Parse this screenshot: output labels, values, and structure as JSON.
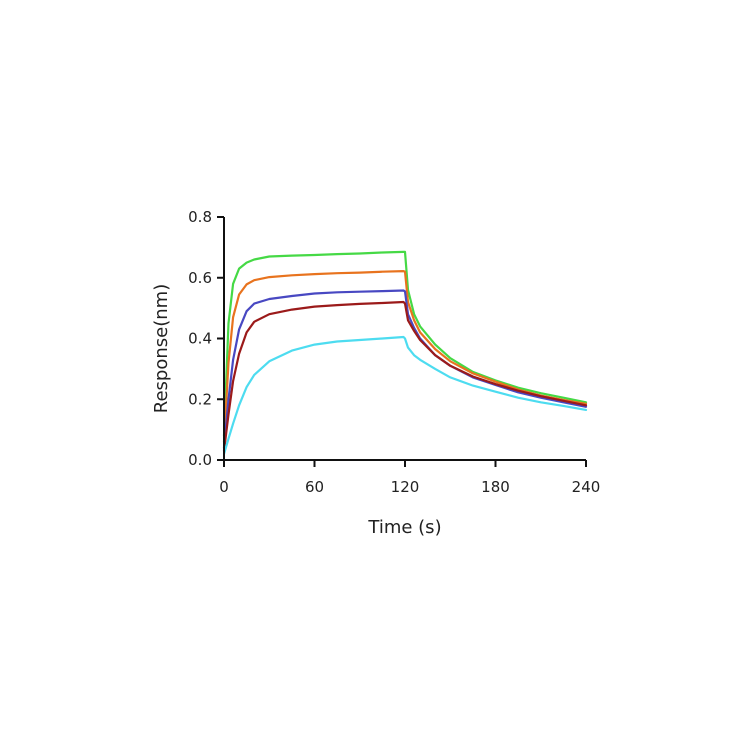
{
  "chart_data": {
    "type": "line",
    "title": "",
    "xlabel": "Time (s)",
    "ylabel": "Response(nm)",
    "xlim": [
      0,
      240
    ],
    "ylim": [
      0,
      0.8
    ],
    "xticks": [
      0,
      60,
      120,
      180,
      240
    ],
    "xtick_labels": [
      "0",
      "60",
      "120",
      "180",
      "240"
    ],
    "yticks": [
      0,
      0.2,
      0.4,
      0.6,
      0.8
    ],
    "ytick_labels": [
      "0.0",
      "0.2",
      "0.4",
      "0.6",
      "0.8"
    ],
    "grid": false,
    "legend": "none",
    "x": [
      0,
      3,
      6,
      10,
      15,
      20,
      30,
      45,
      60,
      75,
      90,
      105,
      119,
      120,
      122,
      126,
      130,
      140,
      150,
      165,
      180,
      195,
      210,
      225,
      240
    ],
    "series": [
      {
        "color": "#45d945",
        "values": [
          0.08,
          0.45,
          0.58,
          0.63,
          0.65,
          0.66,
          0.67,
          0.673,
          0.675,
          0.678,
          0.68,
          0.683,
          0.685,
          0.685,
          0.56,
          0.48,
          0.44,
          0.38,
          0.335,
          0.29,
          0.262,
          0.238,
          0.22,
          0.205,
          0.19
        ]
      },
      {
        "color": "#e8731e",
        "values": [
          0.06,
          0.32,
          0.47,
          0.545,
          0.578,
          0.592,
          0.602,
          0.608,
          0.612,
          0.615,
          0.617,
          0.62,
          0.622,
          0.62,
          0.52,
          0.46,
          0.42,
          0.365,
          0.325,
          0.285,
          0.258,
          0.232,
          0.212,
          0.198,
          0.185
        ]
      },
      {
        "color": "#4848c2",
        "values": [
          0.04,
          0.2,
          0.33,
          0.43,
          0.49,
          0.515,
          0.53,
          0.54,
          0.548,
          0.552,
          0.554,
          0.556,
          0.558,
          0.555,
          0.48,
          0.435,
          0.4,
          0.345,
          0.31,
          0.272,
          0.247,
          0.223,
          0.205,
          0.19,
          0.175
        ]
      },
      {
        "color": "#9b1a1a",
        "values": [
          0.03,
          0.15,
          0.26,
          0.35,
          0.42,
          0.455,
          0.48,
          0.495,
          0.505,
          0.51,
          0.514,
          0.517,
          0.52,
          0.515,
          0.46,
          0.425,
          0.395,
          0.345,
          0.31,
          0.275,
          0.25,
          0.228,
          0.21,
          0.195,
          0.18
        ]
      },
      {
        "color": "#4ddcf0",
        "values": [
          0.02,
          0.07,
          0.12,
          0.18,
          0.24,
          0.28,
          0.325,
          0.36,
          0.38,
          0.39,
          0.395,
          0.4,
          0.405,
          0.4,
          0.37,
          0.345,
          0.33,
          0.3,
          0.272,
          0.245,
          0.225,
          0.205,
          0.19,
          0.178,
          0.165
        ]
      }
    ]
  }
}
